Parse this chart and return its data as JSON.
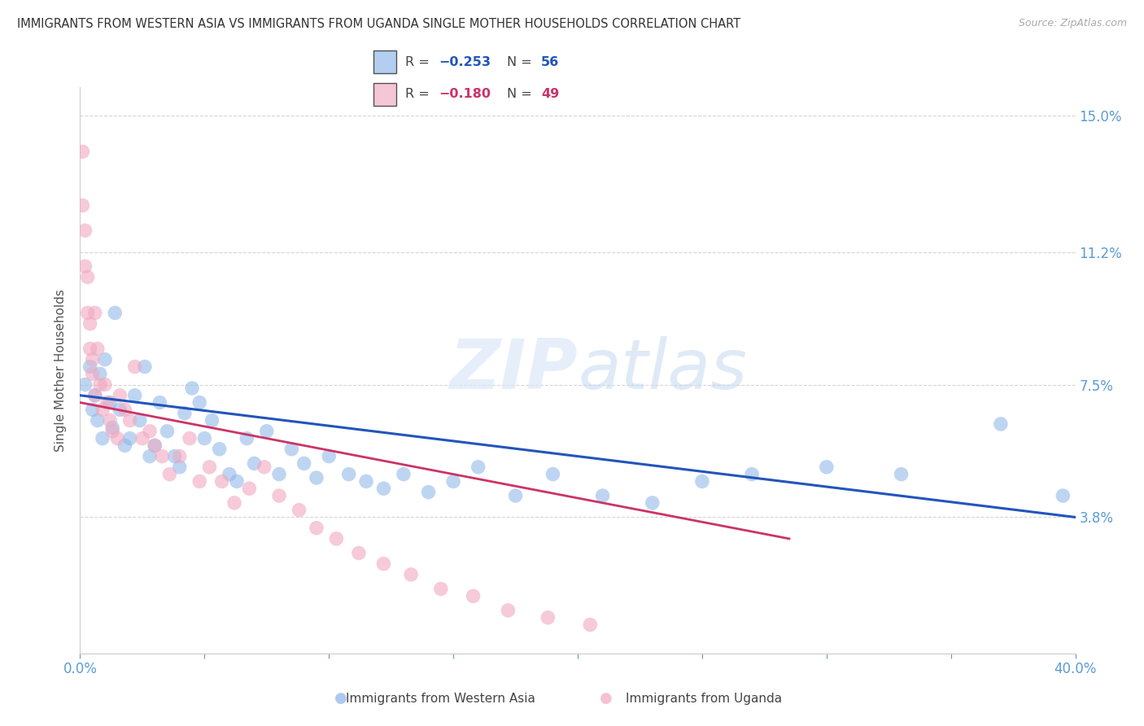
{
  "title": "IMMIGRANTS FROM WESTERN ASIA VS IMMIGRANTS FROM UGANDA SINGLE MOTHER HOUSEHOLDS CORRELATION CHART",
  "source": "Source: ZipAtlas.com",
  "ylabel": "Single Mother Households",
  "yticks": [
    0.0,
    0.038,
    0.075,
    0.112,
    0.15
  ],
  "ytick_labels": [
    "",
    "3.8%",
    "7.5%",
    "11.2%",
    "15.0%"
  ],
  "xlim": [
    0.0,
    0.4
  ],
  "ylim": [
    0.0,
    0.158
  ],
  "legend_blue_r": "-0.253",
  "legend_blue_n": "56",
  "legend_pink_r": "-0.180",
  "legend_pink_n": "49",
  "blue_color": "#8ab4e8",
  "pink_color": "#f0a8c0",
  "blue_line_color": "#2255bb",
  "pink_line_color": "#cc3366",
  "watermark_zip": "ZIP",
  "watermark_atlas": "atlas",
  "grid_color": "#cccccc",
  "title_color": "#333333",
  "axis_label_color": "#5b9bd5",
  "background_color": "#ffffff",
  "blue_scatter_x": [
    0.002,
    0.004,
    0.005,
    0.006,
    0.007,
    0.008,
    0.009,
    0.01,
    0.012,
    0.013,
    0.014,
    0.016,
    0.018,
    0.02,
    0.022,
    0.024,
    0.026,
    0.028,
    0.03,
    0.032,
    0.035,
    0.038,
    0.04,
    0.042,
    0.045,
    0.048,
    0.05,
    0.053,
    0.056,
    0.06,
    0.063,
    0.067,
    0.07,
    0.075,
    0.08,
    0.085,
    0.09,
    0.095,
    0.1,
    0.108,
    0.115,
    0.122,
    0.13,
    0.14,
    0.15,
    0.16,
    0.175,
    0.19,
    0.21,
    0.23,
    0.25,
    0.27,
    0.3,
    0.33,
    0.37,
    0.395
  ],
  "blue_scatter_y": [
    0.075,
    0.08,
    0.068,
    0.072,
    0.065,
    0.078,
    0.06,
    0.082,
    0.07,
    0.063,
    0.095,
    0.068,
    0.058,
    0.06,
    0.072,
    0.065,
    0.08,
    0.055,
    0.058,
    0.07,
    0.062,
    0.055,
    0.052,
    0.067,
    0.074,
    0.07,
    0.06,
    0.065,
    0.057,
    0.05,
    0.048,
    0.06,
    0.053,
    0.062,
    0.05,
    0.057,
    0.053,
    0.049,
    0.055,
    0.05,
    0.048,
    0.046,
    0.05,
    0.045,
    0.048,
    0.052,
    0.044,
    0.05,
    0.044,
    0.042,
    0.048,
    0.05,
    0.052,
    0.05,
    0.064,
    0.044
  ],
  "pink_scatter_x": [
    0.001,
    0.001,
    0.002,
    0.002,
    0.003,
    0.003,
    0.004,
    0.004,
    0.005,
    0.005,
    0.006,
    0.006,
    0.007,
    0.008,
    0.009,
    0.01,
    0.011,
    0.012,
    0.013,
    0.015,
    0.016,
    0.018,
    0.02,
    0.022,
    0.025,
    0.028,
    0.03,
    0.033,
    0.036,
    0.04,
    0.044,
    0.048,
    0.052,
    0.057,
    0.062,
    0.068,
    0.074,
    0.08,
    0.088,
    0.095,
    0.103,
    0.112,
    0.122,
    0.133,
    0.145,
    0.158,
    0.172,
    0.188,
    0.205
  ],
  "pink_scatter_y": [
    0.14,
    0.125,
    0.118,
    0.108,
    0.105,
    0.095,
    0.092,
    0.085,
    0.082,
    0.078,
    0.095,
    0.072,
    0.085,
    0.075,
    0.068,
    0.075,
    0.07,
    0.065,
    0.062,
    0.06,
    0.072,
    0.068,
    0.065,
    0.08,
    0.06,
    0.062,
    0.058,
    0.055,
    0.05,
    0.055,
    0.06,
    0.048,
    0.052,
    0.048,
    0.042,
    0.046,
    0.052,
    0.044,
    0.04,
    0.035,
    0.032,
    0.028,
    0.025,
    0.022,
    0.018,
    0.016,
    0.012,
    0.01,
    0.008
  ],
  "blue_trend_x": [
    0.0,
    0.4
  ],
  "blue_trend_y": [
    0.072,
    0.038
  ],
  "pink_trend_x": [
    0.0,
    0.285
  ],
  "pink_trend_y": [
    0.07,
    0.032
  ]
}
